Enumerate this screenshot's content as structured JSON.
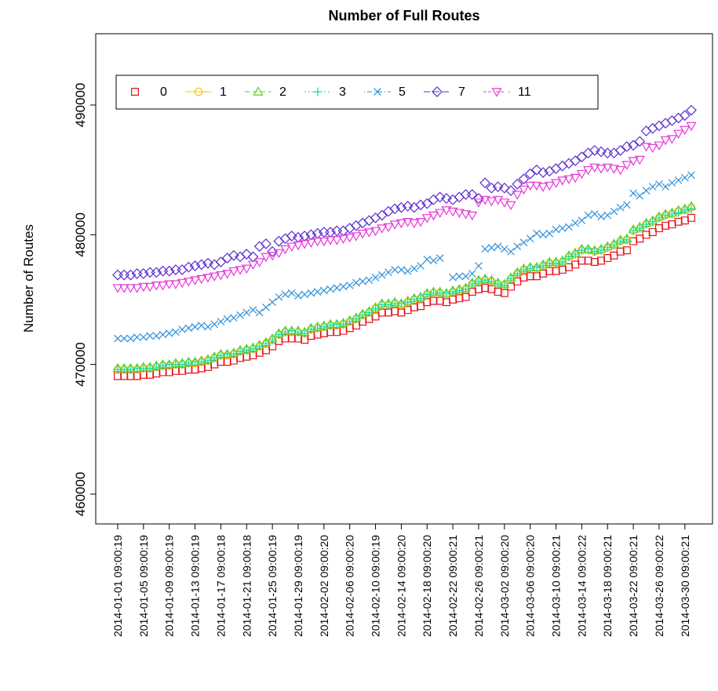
{
  "chart_data": {
    "type": "line",
    "title": "Number of Full Routes",
    "y_label": "Number of Routes",
    "categories": [
      "2014-01-01 09:00:19",
      null,
      null,
      null,
      "2014-01-05 09:00:19",
      null,
      null,
      null,
      "2014-01-09 09:00:19",
      null,
      null,
      null,
      "2014-01-13 09:00:19",
      null,
      null,
      null,
      "2014-01-17 09:00:18",
      null,
      null,
      null,
      "2014-01-21 09:00:18",
      null,
      null,
      null,
      "2014-01-25 09:00:19",
      null,
      null,
      null,
      "2014-01-29 09:00:19",
      null,
      null,
      null,
      "2014-02-02 09:00:20",
      null,
      null,
      null,
      "2014-02-06 09:00:20",
      null,
      null,
      null,
      "2014-02-10 09:00:19",
      null,
      null,
      null,
      "2014-02-14 09:00:20",
      null,
      null,
      null,
      "2014-02-18 09:00:20",
      null,
      null,
      null,
      "2014-02-22 09:00:21",
      null,
      null,
      null,
      "2014-02-26 09:00:21",
      null,
      null,
      null,
      "2014-03-02 09:00:20",
      null,
      null,
      null,
      "2014-03-06 09:00:20",
      null,
      null,
      null,
      "2014-03-10 09:00:21",
      null,
      null,
      null,
      "2014-03-14 09:00:22",
      null,
      null,
      null,
      "2014-03-18 09:00:21",
      null,
      null,
      null,
      "2014-03-22 09:00:21",
      null,
      null,
      null,
      "2014-03-26 09:00:22",
      null,
      null,
      null,
      "2014-03-30 09:00:21",
      null
    ],
    "ylim": [
      457700,
      495500
    ],
    "yticks": [
      460000,
      470000,
      480000,
      490000
    ],
    "legend": "top-left",
    "series": [
      {
        "name": "0",
        "color": "#e8141c",
        "marker": "square",
        "values": [
          469100,
          469100,
          469100,
          469100,
          469200,
          469200,
          469300,
          469400,
          469400,
          469500,
          469500,
          469600,
          469600,
          469700,
          469800,
          470000,
          470200,
          470200,
          470300,
          470500,
          470600,
          470700,
          470900,
          471100,
          471400,
          471800,
          472000,
          472000,
          472000,
          471900,
          472200,
          472300,
          472400,
          472500,
          472500,
          472600,
          472800,
          473000,
          473300,
          473500,
          473700,
          474000,
          474000,
          474100,
          474000,
          474200,
          474400,
          474500,
          474800,
          474900,
          474900,
          474800,
          475000,
          475100,
          475200,
          475600,
          475800,
          475900,
          475800,
          475600,
          475500,
          476000,
          476400,
          476700,
          476800,
          476800,
          477000,
          477200,
          477200,
          477300,
          477500,
          477700,
          478000,
          478000,
          477900,
          478000,
          478200,
          478400,
          478700,
          478800,
          479500,
          479700,
          480000,
          480200,
          480500,
          480700,
          480800,
          481000,
          481100,
          481300
        ]
      },
      {
        "name": "1",
        "color": "#f2c40f",
        "marker": "circle",
        "values": [
          469600,
          469600,
          469600,
          469600,
          469700,
          469700,
          469800,
          469900,
          469900,
          470000,
          470000,
          470100,
          470100,
          470200,
          470300,
          470500,
          470700,
          470700,
          470800,
          471000,
          471100,
          471200,
          471400,
          471600,
          471900,
          472300,
          472500,
          472500,
          472500,
          472400,
          472700,
          472800,
          472900,
          473000,
          473000,
          473100,
          473300,
          473500,
          473800,
          474000,
          474300,
          474600,
          474600,
          474700,
          474600,
          474800,
          475000,
          475100,
          475400,
          475500,
          475500,
          475400,
          475600,
          475700,
          475800,
          476200,
          476400,
          476500,
          476400,
          476200,
          476100,
          476600,
          477000,
          477300,
          477400,
          477400,
          477600,
          477800,
          477800,
          477900,
          478300,
          478500,
          478800,
          478800,
          478700,
          478800,
          479000,
          479200,
          479500,
          479600,
          480300,
          480500,
          480800,
          481000,
          481300,
          481500,
          481600,
          481800,
          481900,
          482100
        ]
      },
      {
        "name": "2",
        "color": "#5ccf1e",
        "marker": "triangle",
        "values": [
          469700,
          469700,
          469700,
          469700,
          469800,
          469800,
          469900,
          470000,
          470000,
          470100,
          470100,
          470200,
          470200,
          470300,
          470400,
          470600,
          470800,
          470800,
          470900,
          471100,
          471200,
          471300,
          471500,
          471700,
          472000,
          472400,
          472600,
          472600,
          472600,
          472500,
          472800,
          472900,
          473000,
          473100,
          473100,
          473200,
          473400,
          473600,
          473900,
          474100,
          474400,
          474700,
          474700,
          474800,
          474700,
          474900,
          475100,
          475200,
          475500,
          475600,
          475600,
          475500,
          475700,
          475800,
          475900,
          476300,
          476500,
          476600,
          476500,
          476300,
          476200,
          476700,
          477100,
          477400,
          477500,
          477500,
          477700,
          477900,
          477900,
          478000,
          478400,
          478600,
          478900,
          478900,
          478800,
          478900,
          479100,
          479300,
          479600,
          479700,
          480400,
          480600,
          480900,
          481100,
          481400,
          481600,
          481700,
          481900,
          482000,
          482200
        ]
      },
      {
        "name": "3",
        "color": "#12d6a8",
        "marker": "plus",
        "values": [
          469600,
          469600,
          469600,
          469700,
          469700,
          469700,
          469800,
          469900,
          470000,
          470000,
          470000,
          470100,
          470200,
          470200,
          470300,
          470500,
          470700,
          470800,
          470800,
          471000,
          471100,
          471200,
          471400,
          471600,
          471900,
          472300,
          472500,
          472600,
          472500,
          472400,
          472700,
          472800,
          472900,
          473000,
          473100,
          473100,
          473300,
          473500,
          473800,
          474000,
          474300,
          474600,
          474600,
          474700,
          474700,
          474800,
          475000,
          475100,
          475400,
          475500,
          475500,
          475500,
          475600,
          475700,
          475800,
          476200,
          476400,
          476500,
          476400,
          476200,
          476100,
          476600,
          477000,
          477300,
          477400,
          477500,
          477600,
          477800,
          477800,
          477900,
          478300,
          478500,
          478800,
          478900,
          478700,
          478800,
          479000,
          479200,
          479500,
          479600,
          480300,
          480500,
          480800,
          481000,
          481300,
          481500,
          481600,
          481700,
          481900,
          482000
        ]
      },
      {
        "name": "5",
        "color": "#2d8fd8",
        "marker": "x",
        "values": [
          472000,
          472000,
          472000,
          472100,
          472100,
          472200,
          472200,
          472300,
          472400,
          472500,
          472700,
          472800,
          472900,
          473000,
          472900,
          473100,
          473300,
          473500,
          473600,
          473800,
          474000,
          474200,
          474000,
          474400,
          474800,
          475200,
          475400,
          475500,
          475300,
          475400,
          475500,
          475600,
          475700,
          475800,
          475900,
          476000,
          476100,
          476300,
          476400,
          476500,
          476700,
          476900,
          477100,
          477300,
          477300,
          477200,
          477400,
          477600,
          478100,
          478000,
          478200,
          null,
          476700,
          476800,
          476800,
          477000,
          477600,
          478900,
          479000,
          479100,
          478900,
          478700,
          479100,
          479400,
          479700,
          480100,
          480000,
          480100,
          480400,
          480500,
          480600,
          480900,
          481100,
          481500,
          481600,
          481400,
          481500,
          481800,
          482100,
          482300,
          483200,
          483000,
          483400,
          483700,
          483900,
          483700,
          484000,
          484200,
          484400,
          484600
        ]
      },
      {
        "name": "7",
        "color": "#5a2ed2",
        "marker": "diamond",
        "values": [
          476900,
          476900,
          476900,
          477000,
          477000,
          477100,
          477100,
          477200,
          477200,
          477300,
          477300,
          477500,
          477600,
          477700,
          477800,
          477700,
          477900,
          478200,
          478400,
          478300,
          478500,
          478300,
          479100,
          479300,
          478700,
          479500,
          479700,
          479900,
          479800,
          479900,
          480000,
          480100,
          480200,
          480200,
          480300,
          480300,
          480500,
          480700,
          480900,
          481100,
          481300,
          481500,
          481800,
          482000,
          482100,
          482200,
          482100,
          482300,
          482400,
          482700,
          482900,
          482800,
          482700,
          482900,
          483100,
          483100,
          482800,
          484000,
          483600,
          483700,
          483600,
          483400,
          483900,
          484300,
          484700,
          485000,
          484800,
          484900,
          485100,
          485300,
          485500,
          485700,
          486000,
          486300,
          486500,
          486400,
          486300,
          486300,
          486500,
          486800,
          486900,
          487200,
          488000,
          488200,
          488400,
          488600,
          488800,
          489000,
          489200,
          489600
        ]
      },
      {
        "name": "11",
        "color": "#e63ad8",
        "marker": "triangle-down",
        "values": [
          475900,
          475900,
          475900,
          475900,
          476000,
          476000,
          476100,
          476100,
          476200,
          476200,
          476300,
          476400,
          476500,
          476600,
          476700,
          476800,
          476900,
          477000,
          477200,
          477300,
          477400,
          477700,
          477900,
          478300,
          478400,
          478600,
          478900,
          479100,
          479200,
          479300,
          479400,
          479500,
          479500,
          479600,
          479600,
          479700,
          479800,
          479900,
          480100,
          480200,
          480300,
          480500,
          480600,
          480800,
          480900,
          481000,
          480900,
          481000,
          481300,
          481500,
          481700,
          481900,
          481800,
          481700,
          481600,
          481500,
          482500,
          482700,
          482600,
          482700,
          482500,
          482300,
          483100,
          483500,
          483800,
          483800,
          483700,
          483800,
          484000,
          484200,
          484300,
          484400,
          484700,
          485000,
          485200,
          485100,
          485200,
          485100,
          485000,
          485400,
          485700,
          485800,
          486800,
          486700,
          486900,
          487300,
          487400,
          487800,
          488100,
          488400
        ]
      }
    ]
  }
}
